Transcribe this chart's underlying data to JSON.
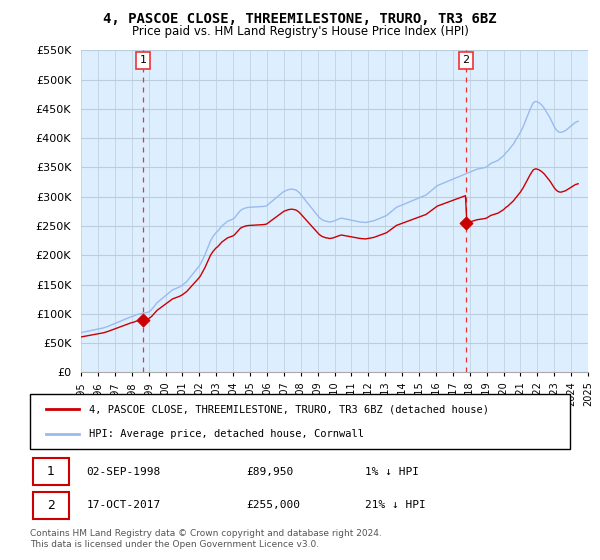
{
  "title": "4, PASCOE CLOSE, THREEMILESTONE, TRURO, TR3 6BZ",
  "subtitle": "Price paid vs. HM Land Registry's House Price Index (HPI)",
  "hpi_label": "HPI: Average price, detached house, Cornwall",
  "price_label": "4, PASCOE CLOSE, THREEMILESTONE, TRURO, TR3 6BZ (detached house)",
  "footer": "Contains HM Land Registry data © Crown copyright and database right 2024.\nThis data is licensed under the Open Government Licence v3.0.",
  "sale1_date": 1998.67,
  "sale1_price": 89950,
  "sale2_date": 2017.79,
  "sale2_price": 255000,
  "ylim": [
    0,
    550000
  ],
  "yticks": [
    0,
    50000,
    100000,
    150000,
    200000,
    250000,
    300000,
    350000,
    400000,
    450000,
    500000,
    550000
  ],
  "price_color": "#cc0000",
  "hpi_color": "#99bbee",
  "sale_dot_color": "#cc0000",
  "vline_color": "#ee3333",
  "background_color": "#ddeeff",
  "grid_color": "#bbccdd",
  "hpi_data_dates": [
    1995.0,
    1995.083,
    1995.167,
    1995.25,
    1995.333,
    1995.417,
    1995.5,
    1995.583,
    1995.667,
    1995.75,
    1995.833,
    1995.917,
    1996.0,
    1996.083,
    1996.167,
    1996.25,
    1996.333,
    1996.417,
    1996.5,
    1996.583,
    1996.667,
    1996.75,
    1996.833,
    1996.917,
    1997.0,
    1997.083,
    1997.167,
    1997.25,
    1997.333,
    1997.417,
    1997.5,
    1997.583,
    1997.667,
    1997.75,
    1997.833,
    1997.917,
    1998.0,
    1998.083,
    1998.167,
    1998.25,
    1998.333,
    1998.417,
    1998.5,
    1998.583,
    1998.667,
    1998.75,
    1998.833,
    1998.917,
    1999.0,
    1999.083,
    1999.167,
    1999.25,
    1999.333,
    1999.417,
    1999.5,
    1999.583,
    1999.667,
    1999.75,
    1999.833,
    1999.917,
    2000.0,
    2000.083,
    2000.167,
    2000.25,
    2000.333,
    2000.417,
    2000.5,
    2000.583,
    2000.667,
    2000.75,
    2000.833,
    2000.917,
    2001.0,
    2001.083,
    2001.167,
    2001.25,
    2001.333,
    2001.417,
    2001.5,
    2001.583,
    2001.667,
    2001.75,
    2001.833,
    2001.917,
    2002.0,
    2002.083,
    2002.167,
    2002.25,
    2002.333,
    2002.417,
    2002.5,
    2002.583,
    2002.667,
    2002.75,
    2002.833,
    2002.917,
    2003.0,
    2003.083,
    2003.167,
    2003.25,
    2003.333,
    2003.417,
    2003.5,
    2003.583,
    2003.667,
    2003.75,
    2003.833,
    2003.917,
    2004.0,
    2004.083,
    2004.167,
    2004.25,
    2004.333,
    2004.417,
    2004.5,
    2004.583,
    2004.667,
    2004.75,
    2004.833,
    2004.917,
    2005.0,
    2005.083,
    2005.167,
    2005.25,
    2005.333,
    2005.417,
    2005.5,
    2005.583,
    2005.667,
    2005.75,
    2005.833,
    2005.917,
    2006.0,
    2006.083,
    2006.167,
    2006.25,
    2006.333,
    2006.417,
    2006.5,
    2006.583,
    2006.667,
    2006.75,
    2006.833,
    2006.917,
    2007.0,
    2007.083,
    2007.167,
    2007.25,
    2007.333,
    2007.417,
    2007.5,
    2007.583,
    2007.667,
    2007.75,
    2007.833,
    2007.917,
    2008.0,
    2008.083,
    2008.167,
    2008.25,
    2008.333,
    2008.417,
    2008.5,
    2008.583,
    2008.667,
    2008.75,
    2008.833,
    2008.917,
    2009.0,
    2009.083,
    2009.167,
    2009.25,
    2009.333,
    2009.417,
    2009.5,
    2009.583,
    2009.667,
    2009.75,
    2009.833,
    2009.917,
    2010.0,
    2010.083,
    2010.167,
    2010.25,
    2010.333,
    2010.417,
    2010.5,
    2010.583,
    2010.667,
    2010.75,
    2010.833,
    2010.917,
    2011.0,
    2011.083,
    2011.167,
    2011.25,
    2011.333,
    2011.417,
    2011.5,
    2011.583,
    2011.667,
    2011.75,
    2011.833,
    2011.917,
    2012.0,
    2012.083,
    2012.167,
    2012.25,
    2012.333,
    2012.417,
    2012.5,
    2012.583,
    2012.667,
    2012.75,
    2012.833,
    2012.917,
    2013.0,
    2013.083,
    2013.167,
    2013.25,
    2013.333,
    2013.417,
    2013.5,
    2013.583,
    2013.667,
    2013.75,
    2013.833,
    2013.917,
    2014.0,
    2014.083,
    2014.167,
    2014.25,
    2014.333,
    2014.417,
    2014.5,
    2014.583,
    2014.667,
    2014.75,
    2014.833,
    2014.917,
    2015.0,
    2015.083,
    2015.167,
    2015.25,
    2015.333,
    2015.417,
    2015.5,
    2015.583,
    2015.667,
    2015.75,
    2015.833,
    2015.917,
    2016.0,
    2016.083,
    2016.167,
    2016.25,
    2016.333,
    2016.417,
    2016.5,
    2016.583,
    2016.667,
    2016.75,
    2016.833,
    2016.917,
    2017.0,
    2017.083,
    2017.167,
    2017.25,
    2017.333,
    2017.417,
    2017.5,
    2017.583,
    2017.667,
    2017.75,
    2017.833,
    2017.917,
    2018.0,
    2018.083,
    2018.167,
    2018.25,
    2018.333,
    2018.417,
    2018.5,
    2018.583,
    2018.667,
    2018.75,
    2018.833,
    2018.917,
    2019.0,
    2019.083,
    2019.167,
    2019.25,
    2019.333,
    2019.417,
    2019.5,
    2019.583,
    2019.667,
    2019.75,
    2019.833,
    2019.917,
    2020.0,
    2020.083,
    2020.167,
    2020.25,
    2020.333,
    2020.417,
    2020.5,
    2020.583,
    2020.667,
    2020.75,
    2020.833,
    2020.917,
    2021.0,
    2021.083,
    2021.167,
    2021.25,
    2021.333,
    2021.417,
    2021.5,
    2021.583,
    2021.667,
    2021.75,
    2021.833,
    2021.917,
    2022.0,
    2022.083,
    2022.167,
    2022.25,
    2022.333,
    2022.417,
    2022.5,
    2022.583,
    2022.667,
    2022.75,
    2022.833,
    2022.917,
    2023.0,
    2023.083,
    2023.167,
    2023.25,
    2023.333,
    2023.417,
    2023.5,
    2023.583,
    2023.667,
    2023.75,
    2023.833,
    2023.917,
    2024.0,
    2024.083,
    2024.167,
    2024.25,
    2024.333,
    2024.417
  ],
  "hpi_data_values": [
    68000,
    68500,
    69000,
    69500,
    70000,
    70500,
    71000,
    71500,
    72000,
    72500,
    73000,
    73500,
    74000,
    74500,
    75000,
    75500,
    76000,
    76800,
    77600,
    78500,
    79500,
    80500,
    81500,
    82500,
    83500,
    84500,
    85500,
    86500,
    87500,
    88500,
    89500,
    90500,
    91500,
    92500,
    93500,
    94500,
    95500,
    96000,
    97000,
    98000,
    99000,
    99500,
    100000,
    100500,
    101000,
    101500,
    102000,
    102500,
    103000,
    105000,
    107000,
    110000,
    113000,
    116000,
    119000,
    121000,
    123000,
    125000,
    127000,
    129000,
    131000,
    133000,
    135000,
    137000,
    139000,
    141000,
    142000,
    143000,
    144000,
    145000,
    146000,
    147500,
    149000,
    151000,
    153000,
    155000,
    158000,
    161000,
    164000,
    167000,
    170000,
    173000,
    176000,
    179000,
    182000,
    186000,
    191000,
    196000,
    201000,
    207000,
    213000,
    219000,
    225000,
    229000,
    233000,
    236000,
    239000,
    241000,
    244000,
    247000,
    250000,
    252000,
    254000,
    256000,
    258000,
    259000,
    260000,
    261000,
    262000,
    264000,
    267000,
    270000,
    273000,
    276000,
    278000,
    279000,
    280000,
    281000,
    281500,
    281800,
    282000,
    282200,
    282400,
    282600,
    282700,
    282800,
    282900,
    283000,
    283200,
    283400,
    283600,
    284000,
    285000,
    287000,
    289000,
    291000,
    293000,
    295000,
    297000,
    299000,
    301000,
    303000,
    305000,
    307000,
    309000,
    310000,
    311000,
    312000,
    312500,
    313000,
    313000,
    312500,
    312000,
    311000,
    309000,
    307000,
    304000,
    301000,
    298000,
    295000,
    292000,
    289000,
    286000,
    283000,
    280000,
    277000,
    274000,
    271000,
    268000,
    265000,
    263000,
    261000,
    260000,
    259000,
    258000,
    258000,
    257000,
    257000,
    257500,
    258000,
    259000,
    260000,
    261000,
    262000,
    263000,
    263500,
    263000,
    262500,
    262000,
    261500,
    261000,
    260500,
    260000,
    259500,
    259000,
    258500,
    258000,
    257500,
    257000,
    256800,
    256500,
    256300,
    256000,
    256500,
    257000,
    257500,
    258000,
    258500,
    259000,
    260000,
    261000,
    262000,
    263000,
    264000,
    265000,
    266000,
    267000,
    268000,
    270000,
    272000,
    274000,
    276000,
    278000,
    280000,
    282000,
    283000,
    284000,
    285000,
    286000,
    287000,
    288000,
    289000,
    290000,
    291000,
    292000,
    293000,
    294000,
    295000,
    296000,
    297000,
    298000,
    299000,
    300000,
    301000,
    302000,
    303000,
    305000,
    307000,
    309000,
    311000,
    313000,
    315000,
    317000,
    319000,
    320000,
    321000,
    322000,
    323000,
    324000,
    325000,
    326000,
    327000,
    328000,
    329000,
    330000,
    331000,
    332000,
    333000,
    334000,
    335000,
    336000,
    337000,
    338000,
    339000,
    340000,
    341000,
    342000,
    343000,
    344000,
    345000,
    346000,
    347000,
    347500,
    348000,
    348500,
    349000,
    349500,
    350000,
    351000,
    353000,
    355000,
    357000,
    358000,
    359000,
    360000,
    361000,
    362000,
    364000,
    366000,
    368000,
    370000,
    373000,
    376000,
    378000,
    381000,
    384000,
    387000,
    390000,
    394000,
    398000,
    402000,
    406000,
    410000,
    415000,
    420000,
    426000,
    432000,
    438000,
    444000,
    450000,
    455000,
    460000,
    462000,
    463000,
    462000,
    461000,
    459000,
    457000,
    454000,
    451000,
    447000,
    443000,
    439000,
    435000,
    430000,
    425000,
    420000,
    416000,
    413000,
    411000,
    410000,
    410000,
    411000,
    412000,
    413000,
    415000,
    417000,
    419000,
    421000,
    423000,
    425000,
    427000,
    428000,
    429000
  ]
}
